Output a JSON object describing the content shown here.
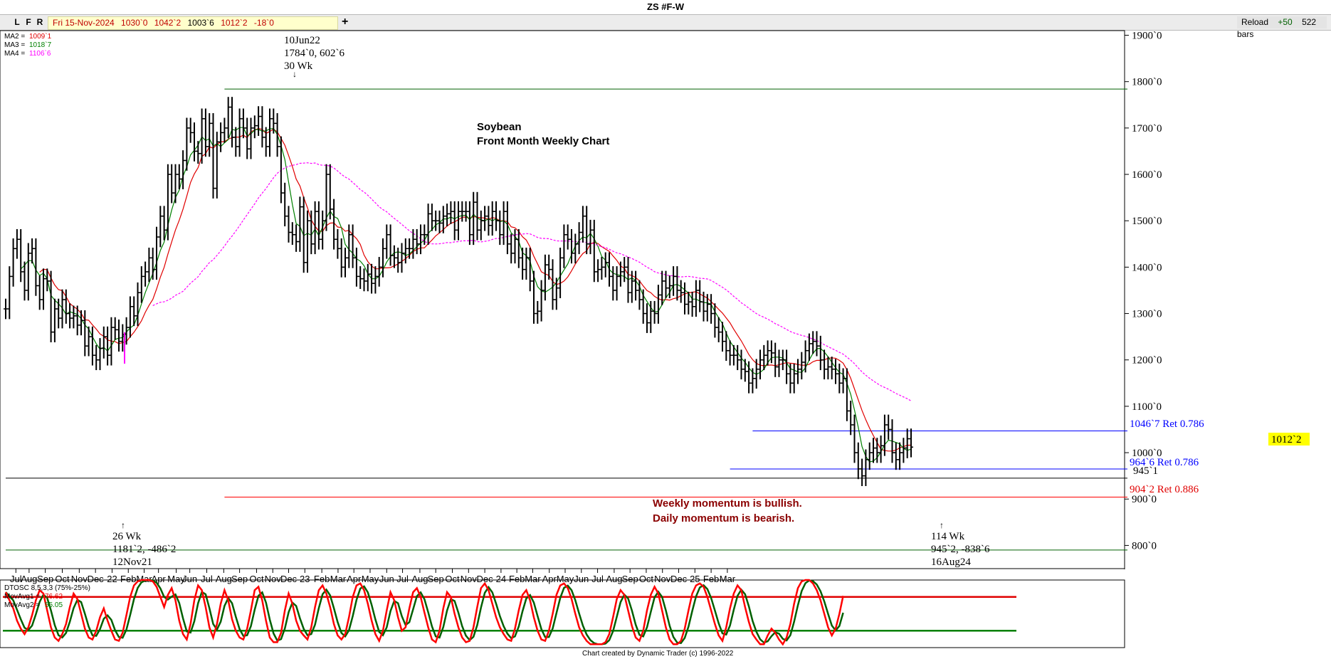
{
  "window": {
    "title": "ZS #F-W"
  },
  "toolbar": {
    "buttons": [
      "L",
      "F",
      "R"
    ],
    "date": "Fri 15-Nov-2024",
    "open": "1030`0",
    "high": "1042`2",
    "low": "1003`6",
    "close": "1012`2",
    "change": "-18`0",
    "reload": "Reload",
    "reload_delta": "+50",
    "bars": "522 bars"
  },
  "legend": {
    "ma2": {
      "label": "MA2 =",
      "value": "1009`1",
      "color": "#e00000"
    },
    "ma3": {
      "label": "MA3 =",
      "value": "1018`7",
      "color": "#008000"
    },
    "ma4": {
      "label": "MA4 =",
      "value": "1106`6",
      "color": "#ff00ff"
    }
  },
  "annotations": {
    "high_pivot": {
      "date": "10Jun22",
      "price": "1784`0, 602`6",
      "duration": "30 Wk"
    },
    "low_pivot_1": {
      "duration": "26 Wk",
      "price": "1181`2, -486`2",
      "date": "12Nov21"
    },
    "low_pivot_2": {
      "duration": "114 Wk",
      "price": "945`2, -838`6",
      "date": "16Aug24"
    },
    "chart_title_1": "Soybean",
    "chart_title_2": "Front Month Weekly Chart",
    "momentum_1": "Weekly momentum is bullish.",
    "momentum_2": "Daily momentum is bearish.",
    "ret_1": "1046`7 Ret 0.786",
    "ret_2": "964`6 Ret 0.786",
    "level_945": "945`1",
    "ret_3": "904`2 Ret 0.886",
    "last_price": "1012`2"
  },
  "oscillator": {
    "name": "DTOSC 8,5,3,3 (75%-25%)",
    "mov1_label": "MovAvg1 =",
    "mov1": "76.62",
    "mov2_label": "MovAvg2 =",
    "mov2": "55.05"
  },
  "footer": "Chart created by Dynamic Trader  (c)  1996-2022",
  "chart_data": {
    "type": "bar",
    "subtype": "ohlc-weekly",
    "instrument": "ZS #F-W",
    "y_axis_ticks": [
      "1900`0",
      "1800`0",
      "1700`0",
      "1600`0",
      "1500`0",
      "1400`0",
      "1300`0",
      "1200`0",
      "1100`0",
      "1000`0",
      "900`0",
      "800`0"
    ],
    "y_axis_values": [
      1900,
      1800,
      1700,
      1600,
      1500,
      1400,
      1300,
      1200,
      1100,
      1000,
      900,
      800
    ],
    "ylim": [
      750,
      1910
    ],
    "x_month_labels": [
      "Jul",
      "Aug",
      "Sep",
      "Oct",
      "Nov",
      "Dec",
      "22",
      "Feb",
      "Mar",
      "Apr",
      "May",
      "Jun",
      "Jul",
      "Aug",
      "Sep",
      "Oct",
      "Nov",
      "Dec",
      "23",
      "Feb",
      "Mar",
      "Apr",
      "May",
      "Jun",
      "Jul",
      "Aug",
      "Sep",
      "Oct",
      "Nov",
      "Dec",
      "24",
      "Feb",
      "Mar",
      "Apr",
      "May",
      "Jun",
      "Jul",
      "Aug",
      "Sep",
      "Oct",
      "Nov",
      "Dec",
      "25",
      "Feb",
      "Mar"
    ],
    "x_month_index": [
      2.7,
      6.2,
      10.5,
      15,
      19.5,
      23.8,
      28.2,
      32.5,
      36.7,
      40.5,
      45.2,
      48.8,
      53.3,
      57.8,
      62,
      66.5,
      70.8,
      75,
      79.3,
      83.8,
      88.1,
      92.3,
      96.6,
      101,
      105.2,
      109.8,
      114,
      118.4,
      122.7,
      127,
      131.3,
      135.5,
      139.7,
      144.1,
      148.3,
      152.6,
      156.9,
      161.3,
      165.5,
      169.8,
      174.1,
      178.4,
      182.7,
      187,
      191.3
    ],
    "weekly_close": [
      1310,
      1380,
      1440,
      1460,
      1390,
      1350,
      1430,
      1440,
      1360,
      1330,
      1375,
      1370,
      1260,
      1310,
      1290,
      1330,
      1300,
      1290,
      1295,
      1275,
      1285,
      1230,
      1250,
      1210,
      1200,
      1225,
      1250,
      1210,
      1270,
      1265,
      1240,
      1255,
      1270,
      1315,
      1295,
      1345,
      1380,
      1390,
      1420,
      1395,
      1465,
      1510,
      1480,
      1600,
      1560,
      1600,
      1590,
      1630,
      1700,
      1690,
      1650,
      1645,
      1720,
      1660,
      1710,
      1570,
      1670,
      1690,
      1700,
      1745,
      1680,
      1660,
      1720,
      1700,
      1655,
      1700,
      1705,
      1725,
      1680,
      1660,
      1720,
      1710,
      1660,
      1560,
      1510,
      1475,
      1470,
      1455,
      1530,
      1410,
      1500,
      1450,
      1520,
      1460,
      1500,
      1600,
      1525,
      1460,
      1440,
      1400,
      1420,
      1470,
      1420,
      1380,
      1375,
      1370,
      1385,
      1365,
      1380,
      1400,
      1440,
      1470,
      1425,
      1420,
      1410,
      1430,
      1440,
      1440,
      1460,
      1450,
      1470,
      1470,
      1515,
      1500,
      1500,
      1495,
      1510,
      1515,
      1520,
      1480,
      1520,
      1520,
      1520,
      1470,
      1540,
      1480,
      1500,
      1510,
      1490,
      1520,
      1500,
      1470,
      1520,
      1450,
      1430,
      1460,
      1420,
      1395,
      1420,
      1370,
      1300,
      1305,
      1350,
      1405,
      1395,
      1330,
      1355,
      1420,
      1470,
      1460,
      1430,
      1450,
      1475,
      1510,
      1450,
      1480,
      1390,
      1395,
      1400,
      1410,
      1380,
      1350,
      1380,
      1390,
      1400,
      1345,
      1370,
      1350,
      1330,
      1300,
      1280,
      1305,
      1300,
      1340,
      1370,
      1355,
      1360,
      1380,
      1350,
      1345,
      1320,
      1325,
      1315,
      1350,
      1325,
      1305,
      1320,
      1300,
      1270,
      1260,
      1240,
      1220,
      1210,
      1210,
      1200,
      1180,
      1175,
      1150,
      1160,
      1180,
      1200,
      1210,
      1220,
      1215,
      1185,
      1200,
      1200,
      1170,
      1150,
      1170,
      1180,
      1195,
      1220,
      1235,
      1240,
      1230,
      1200,
      1180,
      1185,
      1180,
      1170,
      1150,
      1160,
      1090,
      1060,
      1000,
      965,
      950,
      985,
      1000,
      1010,
      1000,
      1015,
      1060,
      1050,
      1000,
      985,
      1000,
      1010,
      1030,
      1012
    ],
    "bar_range": 40,
    "ma_red_close_prefix_note": "series computed from weekly_close",
    "series": [
      {
        "name": "MA2",
        "color": "#e00000",
        "period": 10
      },
      {
        "name": "MA3",
        "color": "#008000",
        "period": 5
      },
      {
        "name": "MA4",
        "color": "#ff00ff",
        "period": 40
      }
    ],
    "horizontal_lines": [
      {
        "value": 1784,
        "color": "#006000",
        "from": 58,
        "to": 225
      },
      {
        "value": 1046.9,
        "color": "#0000ff",
        "from": 198,
        "to": 225
      },
      {
        "value": 964.75,
        "color": "#0000ff",
        "from": 192,
        "to": 225
      },
      {
        "value": 945.1,
        "color": "#000000",
        "from": 0,
        "to": 225
      },
      {
        "value": 904.25,
        "color": "#ff0000",
        "from": 58,
        "to": 225
      },
      {
        "value": 790,
        "color": "#006000",
        "from": 0,
        "to": 225
      }
    ],
    "oscillator": {
      "name": "DTOSC 8,5,3,3 (75%-25%)",
      "levels": [
        75,
        25
      ],
      "ylim": [
        0,
        100
      ],
      "fast": [
        82,
        70,
        58,
        40,
        28,
        20,
        30,
        48,
        70,
        85,
        80,
        55,
        30,
        15,
        10,
        20,
        35,
        60,
        80,
        72,
        50,
        28,
        15,
        12,
        25,
        45,
        58,
        40,
        25,
        12,
        10,
        22,
        48,
        75,
        92,
        98,
        100,
        100,
        100,
        98,
        90,
        75,
        60,
        78,
        88,
        70,
        40,
        20,
        12,
        35,
        70,
        92,
        85,
        60,
        30,
        15,
        35,
        65,
        85,
        70,
        42,
        25,
        15,
        12,
        28,
        55,
        85,
        90,
        70,
        40,
        15,
        8,
        8,
        22,
        55,
        80,
        65,
        40,
        25,
        18,
        12,
        30,
        60,
        85,
        92,
        80,
        60,
        35,
        18,
        12,
        20,
        45,
        75,
        92,
        95,
        85,
        65,
        40,
        20,
        10,
        25,
        55,
        82,
        70,
        45,
        25,
        30,
        58,
        82,
        88,
        75,
        52,
        30,
        12,
        8,
        25,
        58,
        82,
        75,
        50,
        30,
        15,
        8,
        10,
        30,
        60,
        88,
        95,
        85,
        65,
        45,
        30,
        20,
        12,
        10,
        28,
        55,
        78,
        85,
        70,
        45,
        25,
        12,
        10,
        25,
        50,
        78,
        92,
        95,
        88,
        72,
        50,
        30,
        18,
        10,
        5,
        5,
        5,
        5,
        8,
        20,
        45,
        72,
        85,
        78,
        55,
        32,
        15,
        10,
        25,
        55,
        78,
        90,
        80,
        55,
        30,
        12,
        5,
        5,
        10,
        28,
        55,
        80,
        92,
        95,
        90,
        75,
        55,
        35,
        18,
        10,
        30,
        58,
        80,
        92,
        85,
        60,
        38,
        20,
        12,
        5,
        5,
        18,
        28,
        22,
        12,
        5,
        15,
        35,
        65,
        88,
        98,
        100,
        100,
        95,
        85,
        70,
        50,
        30,
        18,
        28,
        50,
        76.62
      ],
      "slow_lag": 2
    }
  }
}
